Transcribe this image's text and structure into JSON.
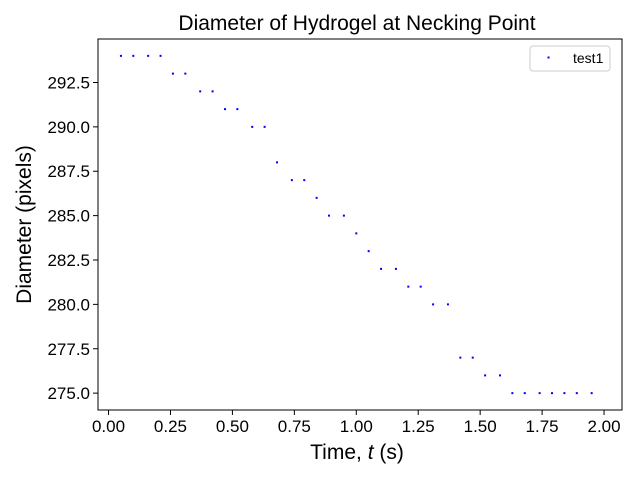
{
  "chart_data": {
    "type": "scatter",
    "title": "Diameter of Hydrogel at Necking Point",
    "xlabel_prefix": "Time, ",
    "xlabel_var": "t",
    "xlabel_suffix": " (s)",
    "ylabel": "Diameter (pixels)",
    "xlim": [
      -0.0425,
      2.0725
    ],
    "ylim": [
      274.05,
      294.95
    ],
    "xticks": [
      0.0,
      0.25,
      0.5,
      0.75,
      1.0,
      1.25,
      1.5,
      1.75,
      2.0
    ],
    "xtick_labels": [
      "0.00",
      "0.25",
      "0.50",
      "0.75",
      "1.00",
      "1.25",
      "1.50",
      "1.75",
      "2.00"
    ],
    "yticks": [
      275.0,
      277.5,
      280.0,
      282.5,
      285.0,
      287.5,
      290.0,
      292.5
    ],
    "ytick_labels": [
      "275.0",
      "277.5",
      "280.0",
      "282.5",
      "285.0",
      "287.5",
      "290.0",
      "292.5"
    ],
    "grid": false,
    "legend_position": "top-right",
    "series": [
      {
        "name": "test1",
        "color": "#0000ff",
        "x": [
          0.05,
          0.1,
          0.16,
          0.21,
          0.26,
          0.31,
          0.37,
          0.42,
          0.47,
          0.52,
          0.58,
          0.63,
          0.68,
          0.74,
          0.79,
          0.84,
          0.89,
          0.95,
          1.0,
          1.05,
          1.1,
          1.16,
          1.21,
          1.26,
          1.31,
          1.37,
          1.42,
          1.47,
          1.52,
          1.58,
          1.63,
          1.68,
          1.74,
          1.79,
          1.84,
          1.89,
          1.95
        ],
        "y": [
          294,
          294,
          294,
          294,
          293,
          293,
          292,
          292,
          291,
          291,
          290,
          290,
          288,
          287,
          287,
          286,
          285,
          285,
          284,
          283,
          282,
          282,
          281,
          281,
          280,
          280,
          277,
          277,
          276,
          276,
          275,
          275,
          275,
          275,
          275,
          275,
          275
        ]
      }
    ]
  }
}
